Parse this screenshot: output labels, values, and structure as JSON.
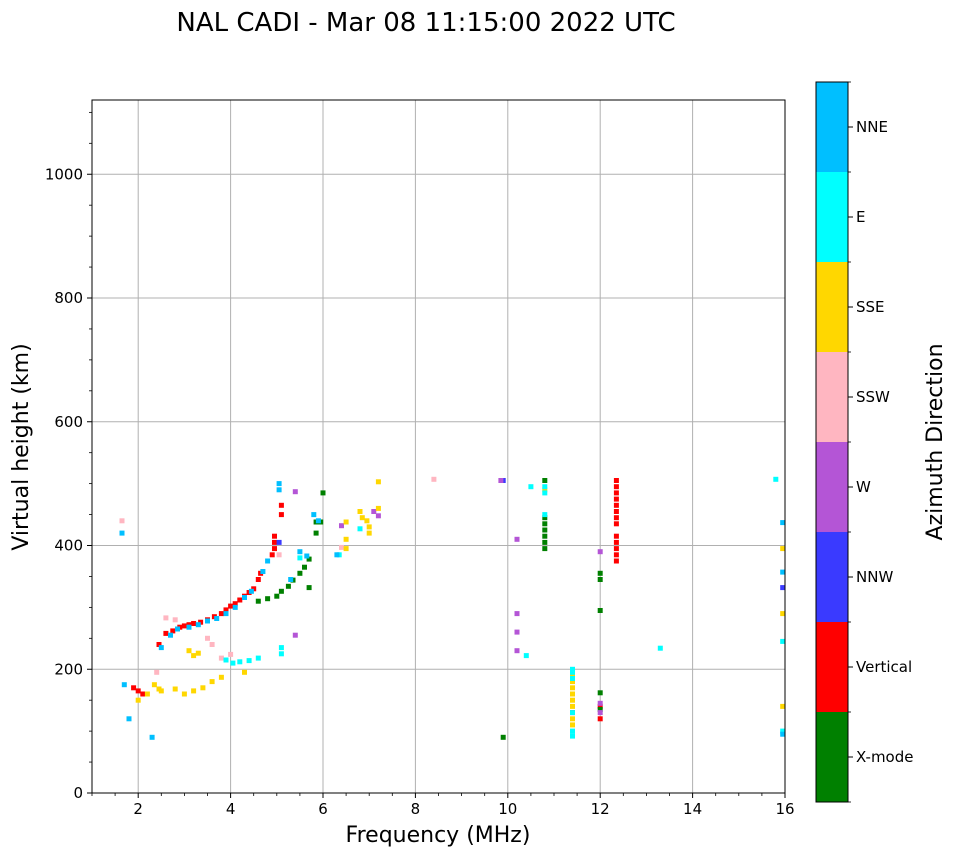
{
  "chart_data": {
    "type": "scatter",
    "title": "NAL CADI - Mar 08 11:15:00 2022 UTC",
    "xlabel": "Frequency (MHz)",
    "ylabel": "Virtual height (km)",
    "xlim": [
      1,
      16
    ],
    "ylim": [
      0,
      1120
    ],
    "xticks": [
      2,
      4,
      6,
      8,
      10,
      12,
      14,
      16
    ],
    "yticks": [
      0,
      200,
      400,
      600,
      800,
      1000
    ],
    "grid": true,
    "colorbar": {
      "label": "Azimuth Direction",
      "categories": [
        "X-mode",
        "Vertical",
        "NNW",
        "W",
        "SSW",
        "SSE",
        "E",
        "NNE"
      ],
      "colors": {
        "X-mode": "#008000",
        "Vertical": "#ff0000",
        "NNW": "#3a3aff",
        "W": "#b455d6",
        "SSW": "#ffb6c1",
        "SSE": "#ffd700",
        "E": "#00ffff",
        "NNE": "#00bfff"
      }
    },
    "series": [
      {
        "name": "Vertical",
        "points": [
          [
            1.9,
            170
          ],
          [
            2.0,
            165
          ],
          [
            2.1,
            160
          ],
          [
            2.45,
            240
          ],
          [
            2.6,
            258
          ],
          [
            2.75,
            262
          ],
          [
            2.9,
            268
          ],
          [
            3.0,
            270
          ],
          [
            3.1,
            272
          ],
          [
            3.2,
            274
          ],
          [
            3.35,
            276
          ],
          [
            3.5,
            280
          ],
          [
            3.65,
            285
          ],
          [
            3.8,
            290
          ],
          [
            3.9,
            296
          ],
          [
            4.0,
            302
          ],
          [
            4.1,
            306
          ],
          [
            4.2,
            312
          ],
          [
            4.3,
            318
          ],
          [
            4.4,
            324
          ],
          [
            4.5,
            330
          ],
          [
            4.6,
            345
          ],
          [
            4.65,
            355
          ],
          [
            4.9,
            385
          ],
          [
            4.95,
            395
          ],
          [
            4.95,
            405
          ],
          [
            4.95,
            415
          ],
          [
            5.1,
            450
          ],
          [
            5.1,
            465
          ],
          [
            12.35,
            505
          ],
          [
            12.35,
            495
          ],
          [
            12.35,
            485
          ],
          [
            12.35,
            475
          ],
          [
            12.35,
            465
          ],
          [
            12.35,
            455
          ],
          [
            12.35,
            445
          ],
          [
            12.35,
            435
          ],
          [
            12.35,
            415
          ],
          [
            12.35,
            405
          ],
          [
            12.35,
            395
          ],
          [
            12.35,
            385
          ],
          [
            12.35,
            375
          ],
          [
            12.0,
            120
          ],
          [
            12.0,
            140
          ],
          [
            11.4,
            130
          ]
        ]
      },
      {
        "name": "X-mode",
        "points": [
          [
            4.6,
            310
          ],
          [
            4.8,
            314
          ],
          [
            5.0,
            318
          ],
          [
            5.1,
            326
          ],
          [
            5.25,
            334
          ],
          [
            5.35,
            344
          ],
          [
            5.5,
            355
          ],
          [
            5.6,
            365
          ],
          [
            5.7,
            378
          ],
          [
            5.85,
            420
          ],
          [
            5.85,
            438
          ],
          [
            5.95,
            438
          ],
          [
            6.0,
            485
          ],
          [
            5.7,
            332
          ],
          [
            10.8,
            505
          ],
          [
            10.8,
            445
          ],
          [
            10.8,
            435
          ],
          [
            10.8,
            425
          ],
          [
            10.8,
            415
          ],
          [
            10.8,
            405
          ],
          [
            10.8,
            395
          ],
          [
            12.0,
            355
          ],
          [
            12.0,
            345
          ],
          [
            12.0,
            295
          ],
          [
            12.0,
            162
          ],
          [
            12.0,
            135
          ],
          [
            9.9,
            90
          ]
        ]
      },
      {
        "name": "NNW",
        "points": [
          [
            5.05,
            405
          ],
          [
            9.9,
            505
          ],
          [
            15.95,
            332
          ]
        ]
      },
      {
        "name": "W",
        "points": [
          [
            5.4,
            487
          ],
          [
            5.4,
            255
          ],
          [
            6.4,
            432
          ],
          [
            7.1,
            455
          ],
          [
            7.2,
            448
          ],
          [
            10.2,
            410
          ],
          [
            10.2,
            290
          ],
          [
            10.2,
            260
          ],
          [
            10.2,
            230
          ],
          [
            12.0,
            390
          ],
          [
            12.0,
            145
          ],
          [
            12.0,
            130
          ],
          [
            9.85,
            505
          ]
        ]
      },
      {
        "name": "SSW",
        "points": [
          [
            1.65,
            440
          ],
          [
            2.4,
            195
          ],
          [
            2.6,
            283
          ],
          [
            2.8,
            280
          ],
          [
            3.5,
            250
          ],
          [
            3.6,
            240
          ],
          [
            3.8,
            218
          ],
          [
            4.0,
            224
          ],
          [
            8.4,
            507
          ],
          [
            5.05,
            385
          ],
          [
            6.4,
            397
          ]
        ]
      },
      {
        "name": "SSE",
        "points": [
          [
            2.0,
            150
          ],
          [
            2.2,
            160
          ],
          [
            2.35,
            175
          ],
          [
            2.45,
            168
          ],
          [
            2.5,
            165
          ],
          [
            2.8,
            168
          ],
          [
            3.0,
            160
          ],
          [
            3.2,
            165
          ],
          [
            3.4,
            170
          ],
          [
            3.6,
            180
          ],
          [
            3.8,
            187
          ],
          [
            3.1,
            230
          ],
          [
            3.2,
            222
          ],
          [
            3.3,
            226
          ],
          [
            4.3,
            195
          ],
          [
            6.5,
            438
          ],
          [
            6.5,
            410
          ],
          [
            6.5,
            395
          ],
          [
            6.8,
            455
          ],
          [
            6.85,
            445
          ],
          [
            6.95,
            440
          ],
          [
            7.0,
            430
          ],
          [
            7.0,
            420
          ],
          [
            7.2,
            503
          ],
          [
            7.2,
            460
          ],
          [
            11.4,
            190
          ],
          [
            11.4,
            180
          ],
          [
            11.4,
            170
          ],
          [
            11.4,
            160
          ],
          [
            11.4,
            150
          ],
          [
            11.4,
            140
          ],
          [
            11.4,
            120
          ],
          [
            11.4,
            110
          ],
          [
            10.8,
            490
          ],
          [
            15.95,
            140
          ],
          [
            15.95,
            290
          ],
          [
            15.95,
            395
          ]
        ]
      },
      {
        "name": "E",
        "points": [
          [
            3.9,
            215
          ],
          [
            4.05,
            210
          ],
          [
            4.2,
            212
          ],
          [
            4.4,
            214
          ],
          [
            4.6,
            218
          ],
          [
            5.1,
            235
          ],
          [
            5.1,
            225
          ],
          [
            5.5,
            380
          ],
          [
            6.35,
            385
          ],
          [
            6.8,
            427
          ],
          [
            10.8,
            495
          ],
          [
            10.8,
            485
          ],
          [
            10.8,
            450
          ],
          [
            10.5,
            495
          ],
          [
            10.4,
            222
          ],
          [
            13.3,
            234
          ],
          [
            15.8,
            507
          ],
          [
            11.4,
            200
          ],
          [
            11.4,
            195
          ],
          [
            11.4,
            185
          ],
          [
            11.4,
            130
          ],
          [
            11.4,
            100
          ],
          [
            11.4,
            92
          ],
          [
            15.95,
            245
          ],
          [
            15.95,
            100
          ]
        ]
      },
      {
        "name": "NNE",
        "points": [
          [
            1.65,
            420
          ],
          [
            1.7,
            175
          ],
          [
            1.8,
            120
          ],
          [
            2.3,
            90
          ],
          [
            2.5,
            235
          ],
          [
            2.7,
            255
          ],
          [
            2.85,
            265
          ],
          [
            3.1,
            268
          ],
          [
            3.3,
            272
          ],
          [
            3.5,
            278
          ],
          [
            3.7,
            282
          ],
          [
            3.9,
            290
          ],
          [
            4.1,
            300
          ],
          [
            4.3,
            316
          ],
          [
            4.45,
            326
          ],
          [
            4.7,
            358
          ],
          [
            4.8,
            375
          ],
          [
            5.05,
            500
          ],
          [
            5.05,
            490
          ],
          [
            5.3,
            345
          ],
          [
            5.5,
            390
          ],
          [
            5.65,
            383
          ],
          [
            5.8,
            450
          ],
          [
            5.9,
            440
          ],
          [
            6.3,
            385
          ],
          [
            15.95,
            437
          ],
          [
            15.95,
            357
          ],
          [
            15.95,
            95
          ]
        ]
      }
    ]
  }
}
